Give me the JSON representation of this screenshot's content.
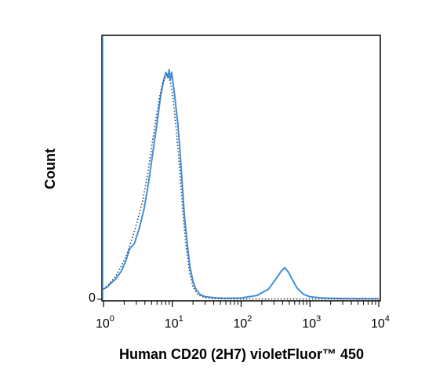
{
  "chart_data": {
    "type": "line",
    "title": "",
    "xlabel": "Human CD20 (2H7) violetFluor™ 450",
    "ylabel": "Count",
    "xscale": "log",
    "xlim": [
      1,
      10000
    ],
    "ylim": [
      0,
      100
    ],
    "grid": false,
    "legend": "none",
    "x_ticks": [
      {
        "base": "10",
        "exp": "0",
        "value": 1
      },
      {
        "base": "10",
        "exp": "1",
        "value": 10
      },
      {
        "base": "10",
        "exp": "2",
        "value": 100
      },
      {
        "base": "10",
        "exp": "3",
        "value": 1000
      },
      {
        "base": "10",
        "exp": "4",
        "value": 10000
      }
    ],
    "y_ticks": [
      {
        "label": "0",
        "value": 0
      }
    ],
    "series": [
      {
        "style": "solid",
        "color": "#3d8fe0",
        "x": [
          1.0,
          1.15,
          1.3,
          1.5,
          1.8,
          2.1,
          2.4,
          2.8,
          3.3,
          3.9,
          4.5,
          5.2,
          6.0,
          6.8,
          7.5,
          8.1,
          8.6,
          9.0,
          9.4,
          9.8,
          10.2,
          10.7,
          11.3,
          12.0,
          13.0,
          14.0,
          15.0,
          16.5,
          18.0,
          20.0,
          22.0,
          25.0,
          30.0,
          35.0,
          45.0,
          60.0,
          100.0,
          170.0,
          250.0,
          320.0,
          380.0,
          430.0,
          480.0,
          550.0,
          650.0,
          800.0,
          1000.0,
          1500.0,
          2500.0,
          5000.0,
          10000.0
        ],
        "y": [
          4.0,
          5.0,
          6.5,
          8.0,
          11.0,
          15.0,
          20.0,
          22.0,
          28.0,
          36.0,
          46.0,
          58.0,
          70.0,
          81.0,
          87.0,
          90.0,
          88.0,
          91.0,
          87.0,
          90.0,
          86.0,
          82.0,
          76.0,
          70.0,
          58.0,
          45.0,
          33.0,
          22.0,
          13.0,
          7.0,
          4.0,
          2.0,
          1.0,
          0.8,
          0.5,
          0.4,
          0.5,
          1.5,
          4.0,
          8.0,
          11.0,
          12.5,
          11.0,
          8.0,
          4.5,
          2.0,
          1.0,
          0.5,
          0.3,
          0.2,
          0.2
        ]
      },
      {
        "style": "dotted",
        "color": "#444444",
        "x": [
          1.0,
          1.2,
          1.5,
          1.8,
          2.2,
          2.6,
          3.1,
          3.7,
          4.4,
          5.1,
          5.9,
          6.6,
          7.3,
          7.9,
          8.4,
          8.9,
          9.4,
          10.0,
          10.7,
          11.5,
          12.5,
          13.5,
          14.5,
          16.0,
          18.0,
          20.0,
          23.0,
          27.0,
          32.0,
          40.0,
          60.0,
          100.0,
          1000.0,
          10000.0
        ],
        "y": [
          4.0,
          6.0,
          9.0,
          13.0,
          18.0,
          24.0,
          31.0,
          39.0,
          50.0,
          62.0,
          73.0,
          81.0,
          86.0,
          88.0,
          89.0,
          88.0,
          86.0,
          82.0,
          75.0,
          66.0,
          55.0,
          43.0,
          32.0,
          20.0,
          10.0,
          5.0,
          2.0,
          1.0,
          0.5,
          0.3,
          0.2,
          0.1,
          0.1,
          0.1
        ]
      }
    ]
  }
}
